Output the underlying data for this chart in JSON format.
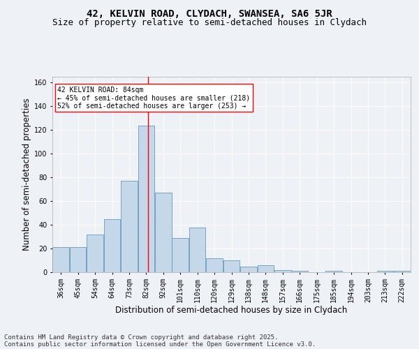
{
  "title_line1": "42, KELVIN ROAD, CLYDACH, SWANSEA, SA6 5JR",
  "title_line2": "Size of property relative to semi-detached houses in Clydach",
  "xlabel": "Distribution of semi-detached houses by size in Clydach",
  "ylabel": "Number of semi-detached properties",
  "categories": [
    "36sqm",
    "45sqm",
    "54sqm",
    "64sqm",
    "73sqm",
    "82sqm",
    "92sqm",
    "101sqm",
    "110sqm",
    "120sqm",
    "129sqm",
    "138sqm",
    "148sqm",
    "157sqm",
    "166sqm",
    "175sqm",
    "185sqm",
    "194sqm",
    "203sqm",
    "213sqm",
    "222sqm"
  ],
  "bar_values": [
    21,
    21,
    32,
    45,
    77,
    124,
    67,
    29,
    38,
    12,
    10,
    5,
    6,
    2,
    1,
    0,
    1,
    0,
    0,
    1,
    1
  ],
  "bar_color": "#c5d8ea",
  "bar_edge_color": "#6699bb",
  "vline_index": 5,
  "vline_color": "red",
  "annotation_text": "42 KELVIN ROAD: 84sqm\n← 45% of semi-detached houses are smaller (218)\n52% of semi-detached houses are larger (253) →",
  "annotation_box_color": "white",
  "annotation_box_edge": "red",
  "ylim": [
    0,
    165
  ],
  "yticks": [
    0,
    20,
    40,
    60,
    80,
    100,
    120,
    140,
    160
  ],
  "footer_line1": "Contains HM Land Registry data © Crown copyright and database right 2025.",
  "footer_line2": "Contains public sector information licensed under the Open Government Licence v3.0.",
  "bg_color": "#eef2f7",
  "grid_color": "#ffffff",
  "title_fontsize": 10,
  "subtitle_fontsize": 9,
  "axis_label_fontsize": 8.5,
  "tick_fontsize": 7,
  "annotation_fontsize": 7,
  "footer_fontsize": 6.5
}
